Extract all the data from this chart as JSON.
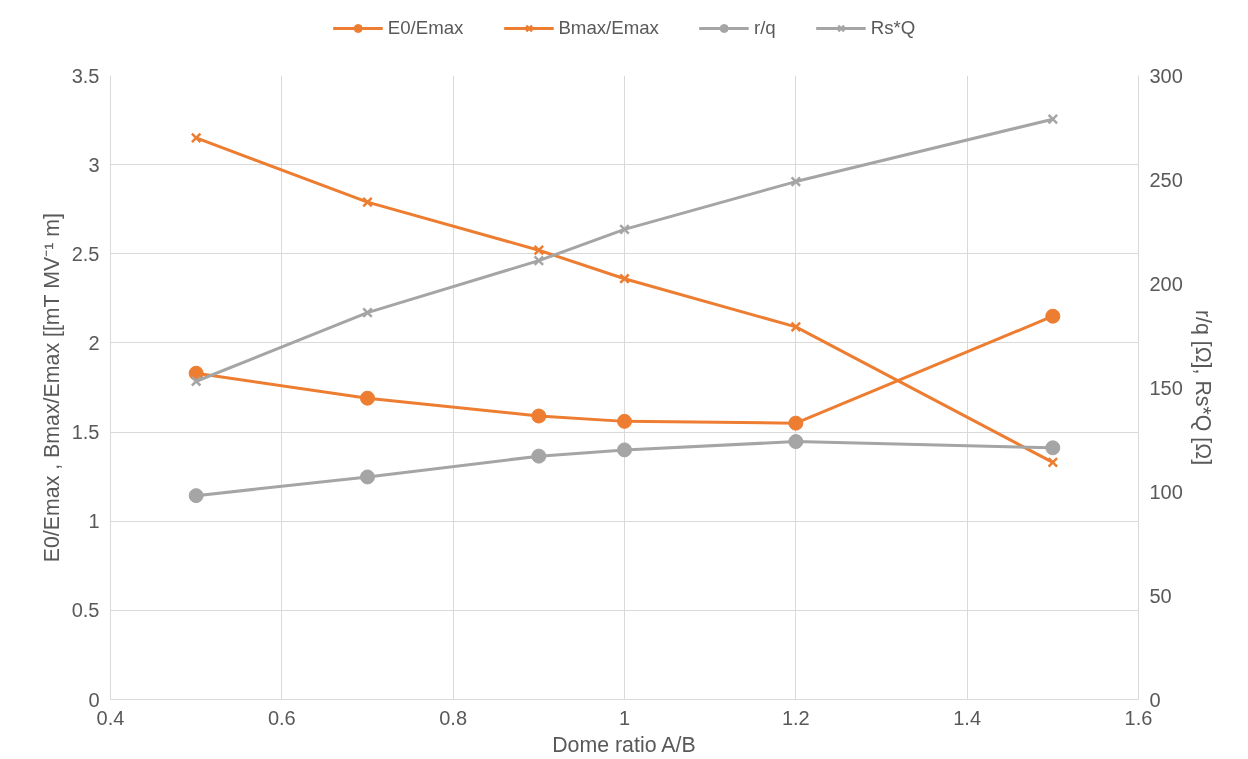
{
  "chart_data": {
    "type": "line",
    "xlabel": "Dome ratio A/B",
    "ylabel": "E0/Emax , Bmax/Emax [[mT MV⁻¹ m]",
    "y2label": "r/q [Ω], Rs*Q [Ω]",
    "x": [
      0.5,
      0.7,
      0.9,
      1.0,
      1.2,
      1.5
    ],
    "series": [
      {
        "name": "E0/Emax",
        "color": "#ed7d31",
        "marker": "circle",
        "values": [
          1.83,
          1.69,
          1.59,
          1.56,
          1.55,
          2.15
        ]
      },
      {
        "name": "Bmax/Emax",
        "color": "#ed7d31",
        "marker": "cross",
        "values": [
          3.15,
          2.79,
          2.52,
          2.36,
          2.09,
          1.33
        ]
      },
      {
        "name": "r/q",
        "color": "#a5a5a5",
        "marker": "circle",
        "axis": "y2",
        "values": [
          98,
          107,
          117,
          120,
          124,
          121
        ]
      },
      {
        "name": "Rs*Q",
        "color": "#a5a5a5",
        "marker": "cross",
        "axis": "y2",
        "values": [
          153,
          186,
          211,
          226,
          249,
          279
        ]
      }
    ],
    "xlim": [
      0.4,
      1.6
    ],
    "xticks": [
      0.4,
      0.6,
      0.8,
      1,
      1.2,
      1.4,
      1.6
    ],
    "ylim": [
      0,
      3.5
    ],
    "yticks": [
      0,
      0.5,
      1,
      1.5,
      2,
      2.5,
      3,
      3.5
    ],
    "y2lim": [
      0,
      300
    ],
    "y2ticks": [
      0,
      50,
      100,
      150,
      200,
      250,
      300
    ],
    "grid": true,
    "legend": "top",
    "line_style": "solid"
  }
}
